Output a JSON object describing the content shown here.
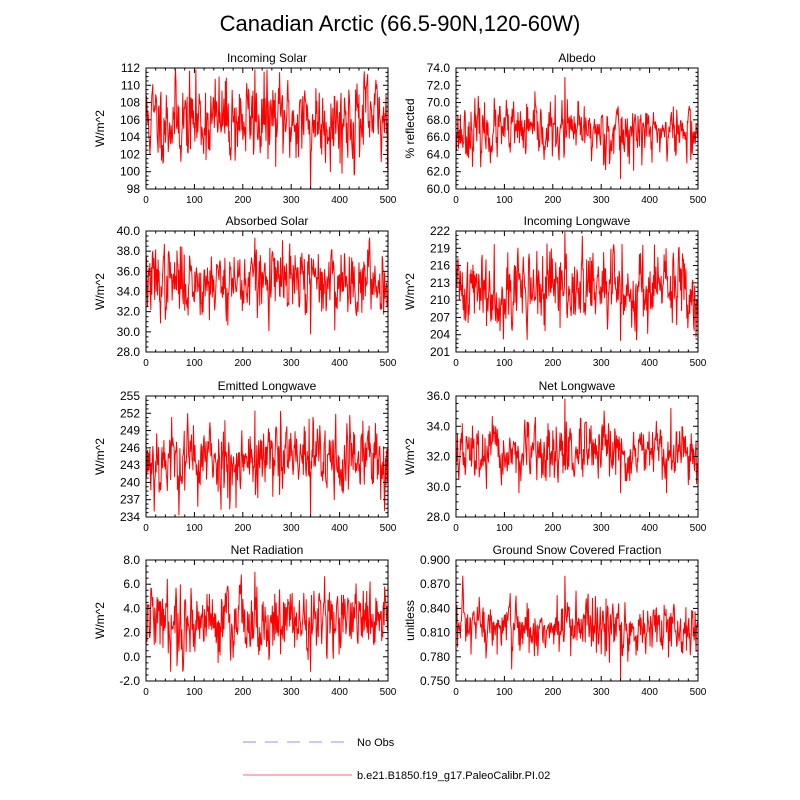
{
  "title": "Canadian Arctic (66.5-90N,120-60W)",
  "colors": {
    "series": "#ff0000",
    "obs": "#b8b8f0",
    "legend_model": "#f4a0a0",
    "axis": "#000000"
  },
  "legend": {
    "obs_label": "No Obs",
    "model_label": "b.e21.B1850.f19_g17.PaleoCalibr.PI.02"
  },
  "chart_data": [
    {
      "type": "line",
      "title": "Incoming Solar",
      "ylabel": "W/m^2",
      "xlim": [
        0,
        500
      ],
      "xticks": [
        0,
        100,
        200,
        300,
        400,
        500
      ],
      "ylim": [
        98,
        112
      ],
      "yticks": [
        98,
        100,
        102,
        104,
        106,
        108,
        110,
        112
      ],
      "ytick_decimals": 0,
      "ytick_labels": [
        "98",
        "100",
        "102",
        "104",
        "106",
        "108",
        "110",
        "112"
      ],
      "series_name": "b.e21.B1850.f19_g17.PaleoCalibr.PI.02",
      "mean": 106.0,
      "amp": 2.3,
      "n": 500,
      "seed": 11,
      "y_min_shown": 98.0,
      "y_max_shown": 111.8
    },
    {
      "type": "line",
      "title": "Albedo",
      "ylabel": "% reflected",
      "xlim": [
        0,
        500
      ],
      "xticks": [
        0,
        100,
        200,
        300,
        400,
        500
      ],
      "ylim": [
        60,
        74
      ],
      "yticks": [
        60,
        62,
        64,
        66,
        68,
        70,
        72,
        74
      ],
      "ytick_decimals": 1,
      "ytick_labels": [
        "60.0",
        "62.0",
        "64.0",
        "66.0",
        "68.0",
        "70.0",
        "72.0",
        "74.0"
      ],
      "series_name": "b.e21.B1850.f19_g17.PaleoCalibr.PI.02",
      "mean": 66.6,
      "amp": 1.5,
      "n": 500,
      "seed": 23,
      "y_min_shown": 61.2,
      "y_max_shown": 72.9
    },
    {
      "type": "line",
      "title": "Absorbed Solar",
      "ylabel": "W/m^2",
      "xlim": [
        0,
        500
      ],
      "xticks": [
        0,
        100,
        200,
        300,
        400,
        500
      ],
      "ylim": [
        28,
        40
      ],
      "yticks": [
        28,
        30,
        32,
        34,
        36,
        38,
        40
      ],
      "ytick_decimals": 1,
      "ytick_labels": [
        "28.0",
        "30.0",
        "32.0",
        "34.0",
        "36.0",
        "38.0",
        "40.0"
      ],
      "series_name": "b.e21.B1850.f19_g17.PaleoCalibr.PI.02",
      "mean": 35.0,
      "amp": 1.6,
      "n": 500,
      "seed": 37,
      "y_min_shown": 29.8,
      "y_max_shown": 39.3
    },
    {
      "type": "line",
      "title": "Incoming Longwave",
      "ylabel": "W/m^2",
      "xlim": [
        0,
        500
      ],
      "xticks": [
        0,
        100,
        200,
        300,
        400,
        500
      ],
      "ylim": [
        201,
        222
      ],
      "yticks": [
        201,
        204,
        207,
        210,
        213,
        216,
        219,
        222
      ],
      "ytick_decimals": 0,
      "ytick_labels": [
        "201",
        "204",
        "207",
        "210",
        "213",
        "216",
        "219",
        "222"
      ],
      "series_name": "b.e21.B1850.f19_g17.PaleoCalibr.PI.02",
      "mean": 212.0,
      "amp": 3.2,
      "n": 500,
      "seed": 41,
      "y_min_shown": 203.0,
      "y_max_shown": 221.8
    },
    {
      "type": "line",
      "title": "Emitted Longwave",
      "ylabel": "W/m^2",
      "xlim": [
        0,
        500
      ],
      "xticks": [
        0,
        100,
        200,
        300,
        400,
        500
      ],
      "ylim": [
        234,
        255
      ],
      "yticks": [
        234,
        237,
        240,
        243,
        246,
        249,
        252,
        255
      ],
      "ytick_decimals": 0,
      "ytick_labels": [
        "234",
        "237",
        "240",
        "243",
        "246",
        "249",
        "252",
        "255"
      ],
      "series_name": "b.e21.B1850.f19_g17.PaleoCalibr.PI.02",
      "mean": 244.0,
      "amp": 3.2,
      "n": 500,
      "seed": 53,
      "y_min_shown": 234.2,
      "y_max_shown": 252.4
    },
    {
      "type": "line",
      "title": "Net Longwave",
      "ylabel": "W/m^2",
      "xlim": [
        0,
        500
      ],
      "xticks": [
        0,
        100,
        200,
        300,
        400,
        500
      ],
      "ylim": [
        28,
        36
      ],
      "yticks": [
        28,
        30,
        32,
        34,
        36
      ],
      "ytick_decimals": 1,
      "ytick_labels": [
        "28.0",
        "30.0",
        "32.0",
        "34.0",
        "36.0"
      ],
      "series_name": "b.e21.B1850.f19_g17.PaleoCalibr.PI.02",
      "mean": 32.1,
      "amp": 0.9,
      "n": 500,
      "seed": 67,
      "y_min_shown": 29.6,
      "y_max_shown": 35.8
    },
    {
      "type": "line",
      "title": "Net Radiation",
      "ylabel": "W/m^2",
      "xlim": [
        0,
        500
      ],
      "xticks": [
        0,
        100,
        200,
        300,
        400,
        500
      ],
      "ylim": [
        -2,
        8
      ],
      "yticks": [
        -2,
        0,
        2,
        4,
        6,
        8
      ],
      "ytick_decimals": 1,
      "ytick_labels": [
        "-2.0",
        "0.0",
        "2.0",
        "4.0",
        "6.0",
        "8.0"
      ],
      "series_name": "b.e21.B1850.f19_g17.PaleoCalibr.PI.02",
      "mean": 3.0,
      "amp": 1.4,
      "n": 500,
      "seed": 79,
      "y_min_shown": -1.2,
      "y_max_shown": 7.0
    },
    {
      "type": "line",
      "title": "Ground Snow Covered Fraction",
      "ylabel": "unitless",
      "xlim": [
        0,
        500
      ],
      "xticks": [
        0,
        100,
        200,
        300,
        400,
        500
      ],
      "ylim": [
        0.75,
        0.9
      ],
      "yticks": [
        0.75,
        0.78,
        0.81,
        0.84,
        0.87,
        0.9
      ],
      "ytick_decimals": 3,
      "ytick_labels": [
        "0.750",
        "0.780",
        "0.810",
        "0.840",
        "0.870",
        "0.900"
      ],
      "series_name": "b.e21.B1850.f19_g17.PaleoCalibr.PI.02",
      "mean": 0.815,
      "amp": 0.017,
      "n": 500,
      "seed": 97,
      "y_min_shown": 0.752,
      "y_max_shown": 0.88
    }
  ]
}
